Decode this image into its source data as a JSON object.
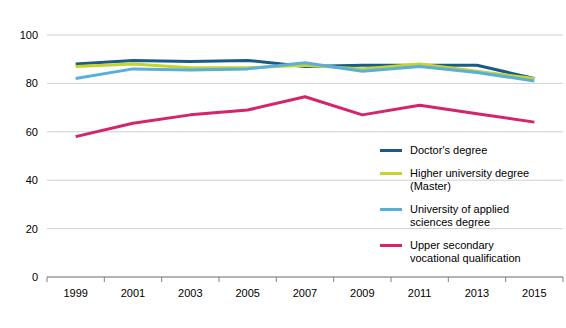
{
  "chart_data": {
    "type": "line",
    "categories": [
      "1999",
      "2001",
      "2003",
      "2005",
      "2007",
      "2009",
      "2011",
      "2013",
      "2015"
    ],
    "series": [
      {
        "name": "Doctor's degree",
        "color": "#1b5a86",
        "values": [
          88,
          89.5,
          89,
          89.5,
          87,
          87.5,
          87.5,
          87.5,
          82
        ]
      },
      {
        "name": "Higher university degree (Master)",
        "color": "#c4d42c",
        "values": [
          87,
          88,
          86.5,
          86.5,
          87.5,
          86,
          88,
          85,
          82
        ]
      },
      {
        "name": "University of applied sciences degree",
        "color": "#5aaedc",
        "values": [
          82,
          86,
          85.5,
          86,
          88.5,
          85,
          87,
          84.5,
          81
        ]
      },
      {
        "name": "Upper secondary vocational qualification",
        "color": "#d3246c",
        "values": [
          58,
          63.5,
          67,
          69,
          74.5,
          67,
          71,
          67.5,
          64
        ]
      }
    ],
    "ylim": [
      0,
      100
    ],
    "yticks": [
      0,
      20,
      40,
      60,
      80,
      100
    ],
    "grid": true,
    "legend": "right"
  }
}
